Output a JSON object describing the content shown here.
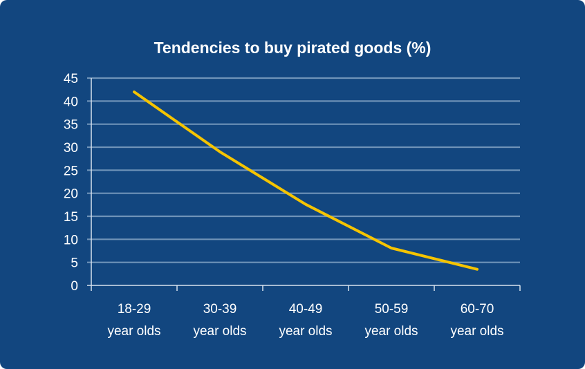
{
  "chart_data": {
    "type": "line",
    "title": "Tendencies to buy pirated goods (%)",
    "categories": [
      [
        "18-29",
        "year olds"
      ],
      [
        "30-39",
        "year olds"
      ],
      [
        "40-49",
        "year olds"
      ],
      [
        "50-59",
        "year olds"
      ],
      [
        "60-70",
        "year olds"
      ]
    ],
    "series": [
      {
        "name": "Tendencies to buy pirated goods",
        "values": [
          42,
          29,
          17.6,
          8.1,
          3.5
        ],
        "color": "#f5c400"
      }
    ],
    "xlabel": "",
    "ylabel": "",
    "ylim": [
      0,
      45
    ],
    "yticks": [
      0,
      5,
      10,
      15,
      20,
      25,
      30,
      35,
      40,
      45
    ],
    "grid": true,
    "legend": "none",
    "colors": {
      "background": "#12467f",
      "grid": "#6f93b8",
      "axis": "#d8e2ee"
    }
  }
}
